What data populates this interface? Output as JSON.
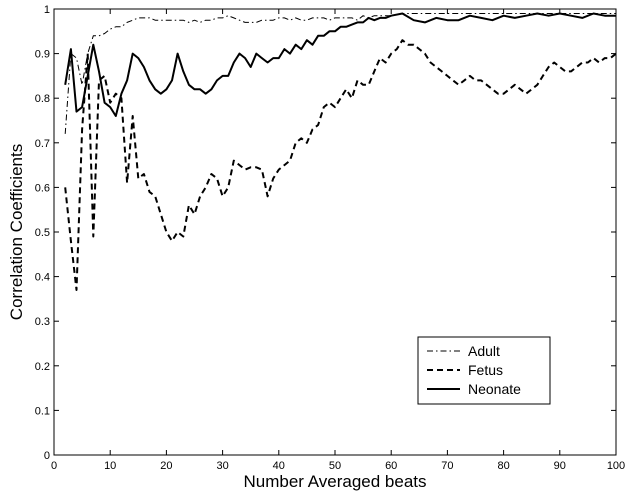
{
  "chart_data": {
    "type": "line",
    "title": "",
    "xlabel": "Number Averaged beats",
    "ylabel": "Correlation Coefficients",
    "xlim": [
      0,
      100
    ],
    "ylim": [
      0,
      1
    ],
    "xticks": [
      0,
      10,
      20,
      30,
      40,
      50,
      60,
      70,
      80,
      90,
      100
    ],
    "yticks": [
      0,
      0.1,
      0.2,
      0.3,
      0.4,
      0.5,
      0.6,
      0.7,
      0.8,
      0.9,
      1
    ],
    "grid": false,
    "legend_position": "bottom-right",
    "series": [
      {
        "name": "Adult",
        "style": "dashdot",
        "color": "#000000",
        "x": [
          2,
          3,
          4,
          5,
          6,
          7,
          8,
          9,
          10,
          11,
          12,
          13,
          14,
          15,
          16,
          17,
          18,
          19,
          20,
          21,
          22,
          23,
          24,
          25,
          26,
          27,
          28,
          29,
          30,
          31,
          32,
          33,
          34,
          35,
          36,
          37,
          38,
          39,
          40,
          41,
          42,
          43,
          44,
          45,
          46,
          47,
          48,
          49,
          50,
          51,
          52,
          53,
          54,
          55,
          56,
          57,
          58,
          59,
          60,
          62,
          64,
          66,
          68,
          70,
          72,
          74,
          76,
          78,
          80,
          82,
          84,
          86,
          88,
          90,
          92,
          94,
          96,
          98,
          100
        ],
        "y": [
          0.72,
          0.9,
          0.89,
          0.83,
          0.9,
          0.94,
          0.94,
          0.945,
          0.955,
          0.96,
          0.96,
          0.97,
          0.975,
          0.98,
          0.98,
          0.98,
          0.975,
          0.975,
          0.975,
          0.975,
          0.975,
          0.975,
          0.97,
          0.975,
          0.97,
          0.975,
          0.975,
          0.98,
          0.98,
          0.985,
          0.98,
          0.975,
          0.97,
          0.97,
          0.97,
          0.975,
          0.975,
          0.975,
          0.98,
          0.98,
          0.975,
          0.98,
          0.975,
          0.975,
          0.98,
          0.98,
          0.98,
          0.975,
          0.98,
          0.98,
          0.98,
          0.98,
          0.975,
          0.985,
          0.98,
          0.985,
          0.985,
          0.985,
          0.985,
          0.99,
          0.99,
          0.99,
          0.99,
          0.99,
          0.99,
          0.99,
          0.99,
          0.99,
          0.99,
          0.99,
          0.99,
          0.99,
          0.99,
          0.99,
          0.99,
          0.99,
          0.99,
          0.99,
          0.99
        ]
      },
      {
        "name": "Fetus",
        "style": "dashed",
        "color": "#000000",
        "x": [
          2,
          3,
          4,
          5,
          6,
          7,
          8,
          9,
          10,
          11,
          12,
          13,
          14,
          15,
          16,
          17,
          18,
          19,
          20,
          21,
          22,
          23,
          24,
          25,
          26,
          27,
          28,
          29,
          30,
          31,
          32,
          33,
          34,
          35,
          36,
          37,
          38,
          39,
          40,
          41,
          42,
          43,
          44,
          45,
          46,
          47,
          48,
          49,
          50,
          51,
          52,
          53,
          54,
          55,
          56,
          57,
          58,
          59,
          60,
          61,
          62,
          63,
          64,
          65,
          66,
          67,
          68,
          69,
          70,
          71,
          72,
          73,
          74,
          75,
          76,
          77,
          78,
          79,
          80,
          81,
          82,
          83,
          84,
          85,
          86,
          87,
          88,
          89,
          90,
          91,
          92,
          93,
          94,
          95,
          96,
          97,
          98,
          99,
          100
        ],
        "y": [
          0.6,
          0.48,
          0.37,
          0.73,
          0.9,
          0.49,
          0.84,
          0.85,
          0.79,
          0.81,
          0.8,
          0.61,
          0.76,
          0.62,
          0.63,
          0.59,
          0.58,
          0.54,
          0.5,
          0.48,
          0.5,
          0.49,
          0.56,
          0.54,
          0.58,
          0.6,
          0.63,
          0.62,
          0.58,
          0.6,
          0.66,
          0.65,
          0.64,
          0.645,
          0.645,
          0.64,
          0.58,
          0.62,
          0.64,
          0.65,
          0.66,
          0.7,
          0.71,
          0.7,
          0.73,
          0.74,
          0.78,
          0.79,
          0.78,
          0.8,
          0.82,
          0.8,
          0.84,
          0.83,
          0.83,
          0.86,
          0.89,
          0.88,
          0.9,
          0.91,
          0.93,
          0.92,
          0.92,
          0.91,
          0.9,
          0.88,
          0.87,
          0.86,
          0.85,
          0.84,
          0.83,
          0.84,
          0.85,
          0.84,
          0.84,
          0.83,
          0.82,
          0.81,
          0.81,
          0.82,
          0.83,
          0.82,
          0.81,
          0.82,
          0.83,
          0.85,
          0.87,
          0.88,
          0.87,
          0.86,
          0.86,
          0.87,
          0.88,
          0.88,
          0.89,
          0.88,
          0.89,
          0.89,
          0.9
        ]
      },
      {
        "name": "Neonate",
        "style": "solid",
        "color": "#000000",
        "x": [
          2,
          3,
          4,
          5,
          6,
          7,
          8,
          9,
          10,
          11,
          12,
          13,
          14,
          15,
          16,
          17,
          18,
          19,
          20,
          21,
          22,
          23,
          24,
          25,
          26,
          27,
          28,
          29,
          30,
          31,
          32,
          33,
          34,
          35,
          36,
          37,
          38,
          39,
          40,
          41,
          42,
          43,
          44,
          45,
          46,
          47,
          48,
          49,
          50,
          51,
          52,
          53,
          54,
          55,
          56,
          57,
          58,
          59,
          60,
          62,
          64,
          66,
          68,
          70,
          72,
          74,
          76,
          78,
          80,
          82,
          84,
          86,
          88,
          90,
          92,
          94,
          96,
          98,
          100
        ],
        "y": [
          0.83,
          0.91,
          0.77,
          0.78,
          0.85,
          0.92,
          0.86,
          0.79,
          0.78,
          0.76,
          0.81,
          0.84,
          0.9,
          0.89,
          0.87,
          0.84,
          0.82,
          0.81,
          0.82,
          0.84,
          0.9,
          0.86,
          0.83,
          0.82,
          0.82,
          0.81,
          0.82,
          0.84,
          0.85,
          0.85,
          0.88,
          0.9,
          0.89,
          0.87,
          0.9,
          0.89,
          0.88,
          0.89,
          0.89,
          0.91,
          0.9,
          0.92,
          0.91,
          0.93,
          0.92,
          0.94,
          0.94,
          0.95,
          0.95,
          0.96,
          0.96,
          0.965,
          0.97,
          0.97,
          0.98,
          0.975,
          0.98,
          0.98,
          0.985,
          0.99,
          0.975,
          0.97,
          0.98,
          0.975,
          0.975,
          0.985,
          0.98,
          0.975,
          0.985,
          0.98,
          0.985,
          0.99,
          0.985,
          0.99,
          0.985,
          0.98,
          0.99,
          0.985,
          0.985
        ]
      }
    ]
  }
}
